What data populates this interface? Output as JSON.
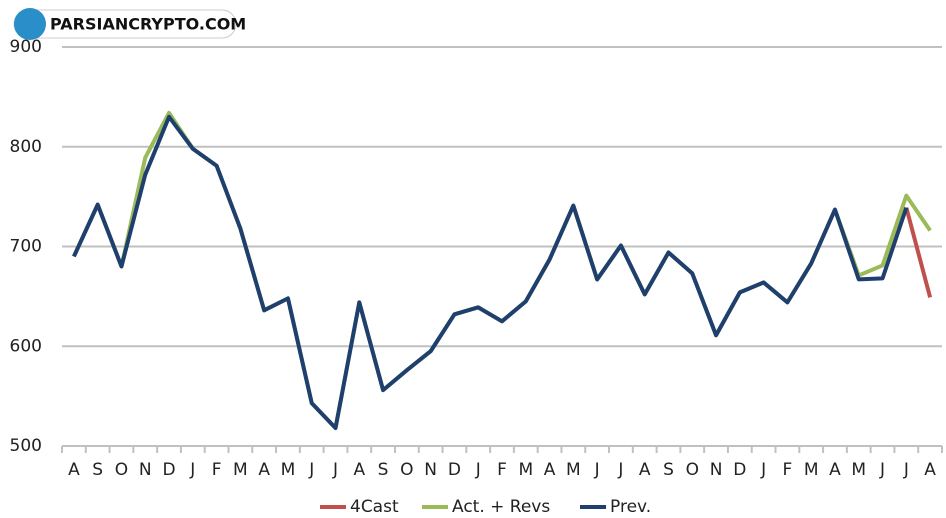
{
  "watermark": "PARSIANCRYPTO.COM",
  "chart_data": {
    "type": "line",
    "categories": [
      "A",
      "S",
      "O",
      "N",
      "D",
      "J",
      "F",
      "M",
      "A",
      "M",
      "J",
      "J",
      "A",
      "S",
      "O",
      "N",
      "D",
      "J",
      "F",
      "M",
      "A",
      "M",
      "J",
      "J",
      "A",
      "S",
      "O",
      "N",
      "D",
      "J",
      "F",
      "M",
      "A",
      "M",
      "J",
      "J",
      "A"
    ],
    "series": [
      {
        "name": "4Cast",
        "color": "#c0504d",
        "values": [
          null,
          null,
          null,
          null,
          null,
          null,
          null,
          null,
          null,
          null,
          null,
          null,
          null,
          null,
          null,
          null,
          null,
          null,
          null,
          null,
          null,
          null,
          null,
          null,
          null,
          null,
          null,
          null,
          null,
          null,
          null,
          null,
          null,
          null,
          null,
          739,
          649
        ]
      },
      {
        "name": "Act. + Revs",
        "color": "#9bbb59",
        "values": [
          690,
          742,
          680,
          789,
          834,
          798,
          781,
          718,
          636,
          648,
          543,
          518,
          644,
          556,
          576,
          595,
          632,
          639,
          625,
          645,
          687,
          741,
          667,
          701,
          652,
          694,
          673,
          611,
          654,
          664,
          644,
          683,
          737,
          671,
          681,
          751,
          716
        ]
      },
      {
        "name": "Prev.",
        "color": "#1f3f6e",
        "values": [
          690,
          742,
          680,
          772,
          830,
          798,
          781,
          718,
          636,
          648,
          543,
          518,
          644,
          556,
          576,
          595,
          632,
          639,
          625,
          645,
          687,
          741,
          667,
          701,
          652,
          694,
          673,
          611,
          654,
          664,
          644,
          683,
          737,
          667,
          668,
          739,
          null
        ]
      }
    ],
    "ylim": [
      500,
      900
    ],
    "yticks": [
      500,
      600,
      700,
      800,
      900
    ],
    "grid": true,
    "legend": "bottom"
  }
}
